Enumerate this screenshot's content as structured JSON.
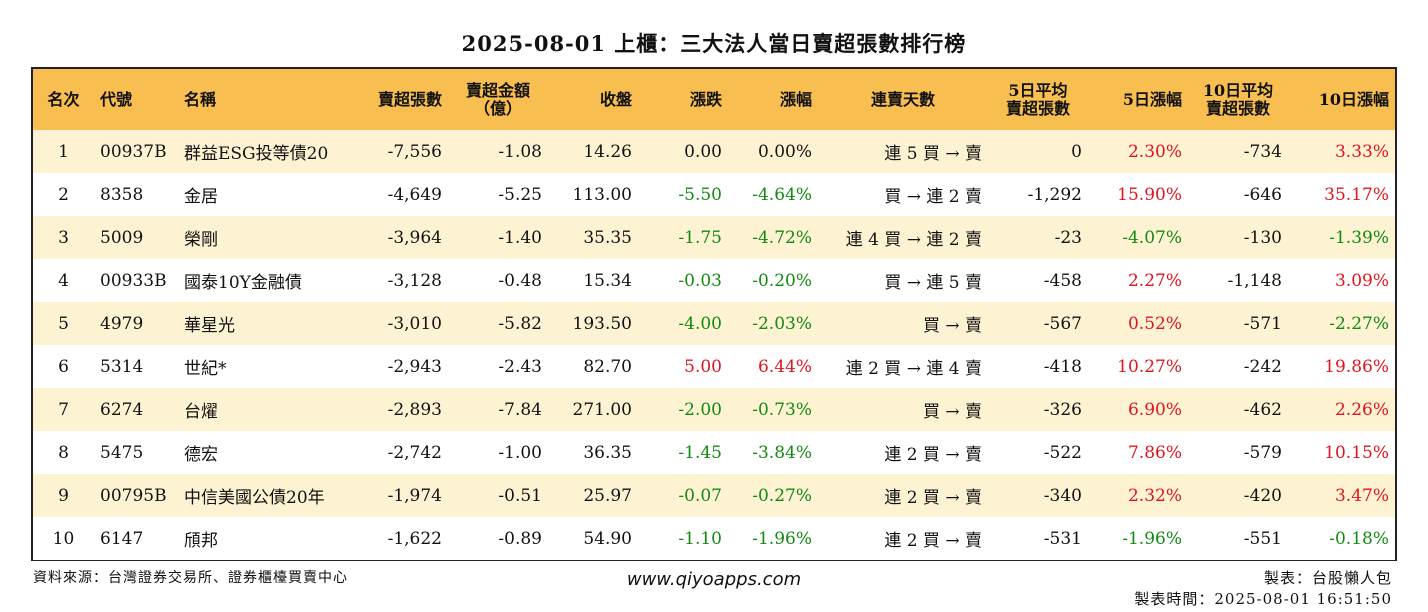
{
  "title": "2025-08-01 上櫃：三大法人當日賣超張數排行榜",
  "headers": {
    "rank": "名次",
    "code": "代號",
    "name": "名稱",
    "sell_qty": "賣超張數",
    "sell_amt_1": "賣超金額",
    "sell_amt_2": "（億）",
    "close": "收盤",
    "change": "漲跌",
    "pct": "漲幅",
    "streak": "連賣天數",
    "avg5_1": "5日平均",
    "avg5_2": "賣超張數",
    "pct5": "5日漲幅",
    "avg10_1": "10日平均",
    "avg10_2": "賣超張數",
    "pct10": "10日漲幅"
  },
  "colors": {
    "header_bg": "#f8be4f",
    "row_alt": "#fdf2d2",
    "up": "#e0141e",
    "down": "#128a12"
  },
  "rows": [
    {
      "rank": "1",
      "code": "00937B",
      "name": "群益ESG投等債20",
      "sell_qty": "-7,556",
      "sell_amt": "-1.08",
      "close": "14.26",
      "change": "0.00",
      "change_dir": "flat",
      "pct": "0.00%",
      "pct_dir": "flat",
      "streak": "連 5 買 → 賣",
      "avg5": "0",
      "pct5": "2.30%",
      "pct5_dir": "up",
      "avg10": "-734",
      "pct10": "3.33%",
      "pct10_dir": "up"
    },
    {
      "rank": "2",
      "code": "8358",
      "name": "金居",
      "sell_qty": "-4,649",
      "sell_amt": "-5.25",
      "close": "113.00",
      "change": "-5.50",
      "change_dir": "down",
      "pct": "-4.64%",
      "pct_dir": "down",
      "streak": "買 → 連 2 賣",
      "avg5": "-1,292",
      "pct5": "15.90%",
      "pct5_dir": "up",
      "avg10": "-646",
      "pct10": "35.17%",
      "pct10_dir": "up"
    },
    {
      "rank": "3",
      "code": "5009",
      "name": "榮剛",
      "sell_qty": "-3,964",
      "sell_amt": "-1.40",
      "close": "35.35",
      "change": "-1.75",
      "change_dir": "down",
      "pct": "-4.72%",
      "pct_dir": "down",
      "streak": "連 4 買 → 連 2 賣",
      "avg5": "-23",
      "pct5": "-4.07%",
      "pct5_dir": "down",
      "avg10": "-130",
      "pct10": "-1.39%",
      "pct10_dir": "down"
    },
    {
      "rank": "4",
      "code": "00933B",
      "name": "國泰10Y金融債",
      "sell_qty": "-3,128",
      "sell_amt": "-0.48",
      "close": "15.34",
      "change": "-0.03",
      "change_dir": "down",
      "pct": "-0.20%",
      "pct_dir": "down",
      "streak": "買 → 連 5 賣",
      "avg5": "-458",
      "pct5": "2.27%",
      "pct5_dir": "up",
      "avg10": "-1,148",
      "pct10": "3.09%",
      "pct10_dir": "up"
    },
    {
      "rank": "5",
      "code": "4979",
      "name": "華星光",
      "sell_qty": "-3,010",
      "sell_amt": "-5.82",
      "close": "193.50",
      "change": "-4.00",
      "change_dir": "down",
      "pct": "-2.03%",
      "pct_dir": "down",
      "streak": "買 → 賣",
      "avg5": "-567",
      "pct5": "0.52%",
      "pct5_dir": "up",
      "avg10": "-571",
      "pct10": "-2.27%",
      "pct10_dir": "down"
    },
    {
      "rank": "6",
      "code": "5314",
      "name": "世紀*",
      "sell_qty": "-2,943",
      "sell_amt": "-2.43",
      "close": "82.70",
      "change": "5.00",
      "change_dir": "up",
      "pct": "6.44%",
      "pct_dir": "up",
      "streak": "連 2 買 → 連 4 賣",
      "avg5": "-418",
      "pct5": "10.27%",
      "pct5_dir": "up",
      "avg10": "-242",
      "pct10": "19.86%",
      "pct10_dir": "up"
    },
    {
      "rank": "7",
      "code": "6274",
      "name": "台燿",
      "sell_qty": "-2,893",
      "sell_amt": "-7.84",
      "close": "271.00",
      "change": "-2.00",
      "change_dir": "down",
      "pct": "-0.73%",
      "pct_dir": "down",
      "streak": "買 → 賣",
      "avg5": "-326",
      "pct5": "6.90%",
      "pct5_dir": "up",
      "avg10": "-462",
      "pct10": "2.26%",
      "pct10_dir": "up"
    },
    {
      "rank": "8",
      "code": "5475",
      "name": "德宏",
      "sell_qty": "-2,742",
      "sell_amt": "-1.00",
      "close": "36.35",
      "change": "-1.45",
      "change_dir": "down",
      "pct": "-3.84%",
      "pct_dir": "down",
      "streak": "連 2 買 → 賣",
      "avg5": "-522",
      "pct5": "7.86%",
      "pct5_dir": "up",
      "avg10": "-579",
      "pct10": "10.15%",
      "pct10_dir": "up"
    },
    {
      "rank": "9",
      "code": "00795B",
      "name": "中信美國公債20年",
      "sell_qty": "-1,974",
      "sell_amt": "-0.51",
      "close": "25.97",
      "change": "-0.07",
      "change_dir": "down",
      "pct": "-0.27%",
      "pct_dir": "down",
      "streak": "連 2 買 → 賣",
      "avg5": "-340",
      "pct5": "2.32%",
      "pct5_dir": "up",
      "avg10": "-420",
      "pct10": "3.47%",
      "pct10_dir": "up"
    },
    {
      "rank": "10",
      "code": "6147",
      "name": "頎邦",
      "sell_qty": "-1,622",
      "sell_amt": "-0.89",
      "close": "54.90",
      "change": "-1.10",
      "change_dir": "down",
      "pct": "-1.96%",
      "pct_dir": "down",
      "streak": "連 2 買 → 賣",
      "avg5": "-531",
      "pct5": "-1.96%",
      "pct5_dir": "down",
      "avg10": "-551",
      "pct10": "-0.18%",
      "pct10_dir": "down"
    }
  ],
  "footer": {
    "source": "資料來源：台灣證券交易所、證券櫃檯買賣中心",
    "website": "www.qiyoapps.com",
    "maker": "製表：台股懶人包",
    "time": "製表時間：2025-08-01 16:51:50"
  }
}
